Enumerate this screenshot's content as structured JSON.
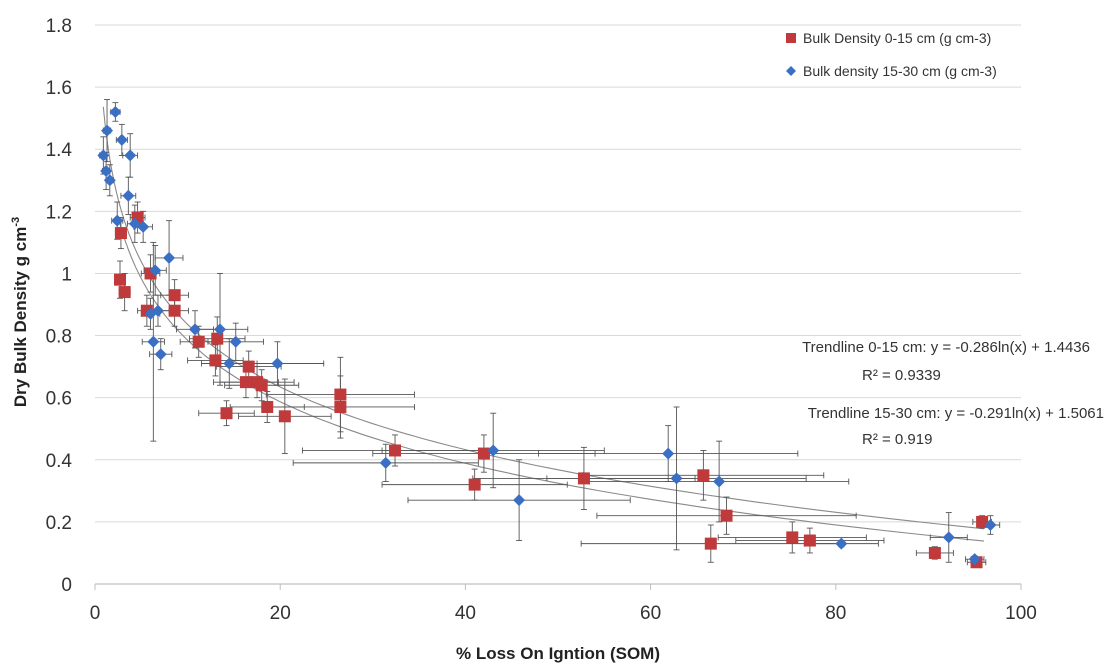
{
  "chart_data": {
    "type": "scatter",
    "title": "",
    "xlabel": "% Loss On Igntion (SOM)",
    "ylabel_main": "Dry Bulk Density g cm",
    "ylabel_sup": "-3",
    "xlim": [
      0,
      100
    ],
    "ylim": [
      0,
      1.8
    ],
    "x_ticks": [
      0,
      20,
      40,
      60,
      80,
      100
    ],
    "y_ticks": [
      0,
      0.2,
      0.4,
      0.6,
      0.8,
      1,
      1.2,
      1.4,
      1.6,
      1.8
    ],
    "y_tick_labels": [
      "0",
      "0.2",
      "0.4",
      "0.6",
      "0.8",
      "1",
      "1.2",
      "1.4",
      "1.6",
      "1.8"
    ],
    "grid": "horizontal",
    "legend_position": "top-right",
    "series": [
      {
        "name": "Bulk Density 0-15 cm (g cm-3)",
        "marker": "square",
        "color": "#C0393B",
        "points": [
          {
            "x": 2.8,
            "y": 1.13,
            "yerr": 0.05,
            "xerr": 0.6
          },
          {
            "x": 2.7,
            "y": 0.98,
            "yerr": 0.06,
            "xerr": 0.6
          },
          {
            "x": 3.2,
            "y": 0.94,
            "yerr": 0.06,
            "xerr": 0.6
          },
          {
            "x": 4.6,
            "y": 1.18,
            "yerr": 0.05,
            "xerr": 0.8
          },
          {
            "x": 6.0,
            "y": 1.0,
            "yerr": 0.06,
            "xerr": 1.0
          },
          {
            "x": 5.6,
            "y": 0.88,
            "yerr": 0.05,
            "xerr": 1.0
          },
          {
            "x": 8.6,
            "y": 0.93,
            "yerr": 0.05,
            "xerr": 1.5
          },
          {
            "x": 8.6,
            "y": 0.88,
            "yerr": 0.05,
            "xerr": 1.5
          },
          {
            "x": 11.2,
            "y": 0.78,
            "yerr": 0.05,
            "xerr": 2.0
          },
          {
            "x": 13.2,
            "y": 0.79,
            "yerr": 0.07,
            "xerr": 3.0
          },
          {
            "x": 13.0,
            "y": 0.72,
            "yerr": 0.05,
            "xerr": 3.0
          },
          {
            "x": 14.2,
            "y": 0.55,
            "yerr": 0.04,
            "xerr": 3.0
          },
          {
            "x": 16.3,
            "y": 0.65,
            "yerr": 0.05,
            "xerr": 3.5
          },
          {
            "x": 16.6,
            "y": 0.7,
            "yerr": 0.05,
            "xerr": 3.5
          },
          {
            "x": 17.5,
            "y": 0.65,
            "yerr": 0.05,
            "xerr": 4.0
          },
          {
            "x": 18.0,
            "y": 0.64,
            "yerr": 0.05,
            "xerr": 4.0
          },
          {
            "x": 18.6,
            "y": 0.57,
            "yerr": 0.05,
            "xerr": 4.0
          },
          {
            "x": 20.5,
            "y": 0.54,
            "yerr": 0.12,
            "xerr": 5.0
          },
          {
            "x": 26.5,
            "y": 0.61,
            "yerr": 0.12,
            "xerr": 8.0
          },
          {
            "x": 26.5,
            "y": 0.57,
            "yerr": 0.1,
            "xerr": 8.0
          },
          {
            "x": 32.4,
            "y": 0.43,
            "yerr": 0.05,
            "xerr": 10.0
          },
          {
            "x": 41.0,
            "y": 0.32,
            "yerr": 0.05,
            "xerr": 10.0
          },
          {
            "x": 42.0,
            "y": 0.42,
            "yerr": 0.06,
            "xerr": 12.0
          },
          {
            "x": 52.8,
            "y": 0.34,
            "yerr": 0.1,
            "xerr": 12.0
          },
          {
            "x": 65.7,
            "y": 0.35,
            "yerr": 0.08,
            "xerr": 13.0
          },
          {
            "x": 66.5,
            "y": 0.13,
            "yerr": 0.06,
            "xerr": 14.0
          },
          {
            "x": 68.2,
            "y": 0.22,
            "yerr": 0.06,
            "xerr": 14.0
          },
          {
            "x": 75.3,
            "y": 0.15,
            "yerr": 0.05,
            "xerr": 8.0
          },
          {
            "x": 77.2,
            "y": 0.14,
            "yerr": 0.04,
            "xerr": 8.0
          },
          {
            "x": 90.7,
            "y": 0.1,
            "yerr": 0.02,
            "xerr": 2.0
          },
          {
            "x": 95.2,
            "y": 0.07,
            "yerr": 0.01,
            "xerr": 1.0
          },
          {
            "x": 95.8,
            "y": 0.2,
            "yerr": 0.02,
            "xerr": 1.0
          }
        ]
      },
      {
        "name": "Bulk density 15-30 cm (g cm-3)",
        "marker": "diamond",
        "color": "#3A6FC4",
        "points": [
          {
            "x": 0.9,
            "y": 1.38,
            "yerr": 0.06,
            "xerr": 0.4
          },
          {
            "x": 1.3,
            "y": 1.46,
            "yerr": 0.1,
            "xerr": 0.4
          },
          {
            "x": 1.2,
            "y": 1.33,
            "yerr": 0.06,
            "xerr": 0.4
          },
          {
            "x": 1.6,
            "y": 1.3,
            "yerr": 0.05,
            "xerr": 0.4
          },
          {
            "x": 2.2,
            "y": 1.52,
            "yerr": 0.03,
            "xerr": 0.5
          },
          {
            "x": 2.9,
            "y": 1.43,
            "yerr": 0.05,
            "xerr": 0.6
          },
          {
            "x": 2.4,
            "y": 1.17,
            "yerr": 0.06,
            "xerr": 0.6
          },
          {
            "x": 3.8,
            "y": 1.38,
            "yerr": 0.07,
            "xerr": 0.8
          },
          {
            "x": 3.6,
            "y": 1.25,
            "yerr": 0.06,
            "xerr": 0.8
          },
          {
            "x": 4.3,
            "y": 1.16,
            "yerr": 0.06,
            "xerr": 0.8
          },
          {
            "x": 5.2,
            "y": 1.15,
            "yerr": 0.05,
            "xerr": 1.0
          },
          {
            "x": 6.0,
            "y": 0.87,
            "yerr": 0.05,
            "xerr": 1.0
          },
          {
            "x": 6.5,
            "y": 1.01,
            "yerr": 0.08,
            "xerr": 1.2
          },
          {
            "x": 6.3,
            "y": 0.78,
            "yerr": 0.32,
            "xerr": 1.2
          },
          {
            "x": 6.8,
            "y": 0.88,
            "yerr": 0.05,
            "xerr": 1.2
          },
          {
            "x": 7.1,
            "y": 0.74,
            "yerr": 0.05,
            "xerr": 1.2
          },
          {
            "x": 8.0,
            "y": 1.05,
            "yerr": 0.12,
            "xerr": 1.5
          },
          {
            "x": 10.8,
            "y": 0.82,
            "yerr": 0.06,
            "xerr": 2.0
          },
          {
            "x": 13.5,
            "y": 0.82,
            "yerr": 0.18,
            "xerr": 3.0
          },
          {
            "x": 14.5,
            "y": 0.71,
            "yerr": 0.08,
            "xerr": 3.0
          },
          {
            "x": 15.2,
            "y": 0.78,
            "yerr": 0.06,
            "xerr": 3.0
          },
          {
            "x": 19.7,
            "y": 0.71,
            "yerr": 0.07,
            "xerr": 5.0
          },
          {
            "x": 31.4,
            "y": 0.39,
            "yerr": 0.06,
            "xerr": 10.0
          },
          {
            "x": 43.0,
            "y": 0.43,
            "yerr": 0.12,
            "xerr": 12.0
          },
          {
            "x": 45.8,
            "y": 0.27,
            "yerr": 0.13,
            "xerr": 12.0
          },
          {
            "x": 61.9,
            "y": 0.42,
            "yerr": 0.09,
            "xerr": 14.0
          },
          {
            "x": 62.8,
            "y": 0.34,
            "yerr": 0.23,
            "xerr": 14.0
          },
          {
            "x": 67.4,
            "y": 0.33,
            "yerr": 0.13,
            "xerr": 14.0
          },
          {
            "x": 80.6,
            "y": 0.13,
            "yerr": 0.01,
            "xerr": 4.0
          },
          {
            "x": 92.2,
            "y": 0.15,
            "yerr": 0.08,
            "xerr": 2.0
          },
          {
            "x": 95.0,
            "y": 0.08,
            "yerr": 0.01,
            "xerr": 1.0
          },
          {
            "x": 96.7,
            "y": 0.19,
            "yerr": 0.03,
            "xerr": 1.0
          }
        ]
      }
    ],
    "trendlines": [
      {
        "label": "Trendline  0-15 cm: y = -0.286ln(x) + 1.4436",
        "r2": "R² = 0.9339",
        "a": -0.286,
        "b": 1.4436,
        "x_from": 2.5,
        "x_to": 96
      },
      {
        "label": "Trendline 15-30 cm:  y = -0.291ln(x) + 1.5061",
        "r2": "R² = 0.919",
        "a": -0.291,
        "b": 1.5061,
        "x_from": 0.9,
        "x_to": 96
      }
    ]
  }
}
